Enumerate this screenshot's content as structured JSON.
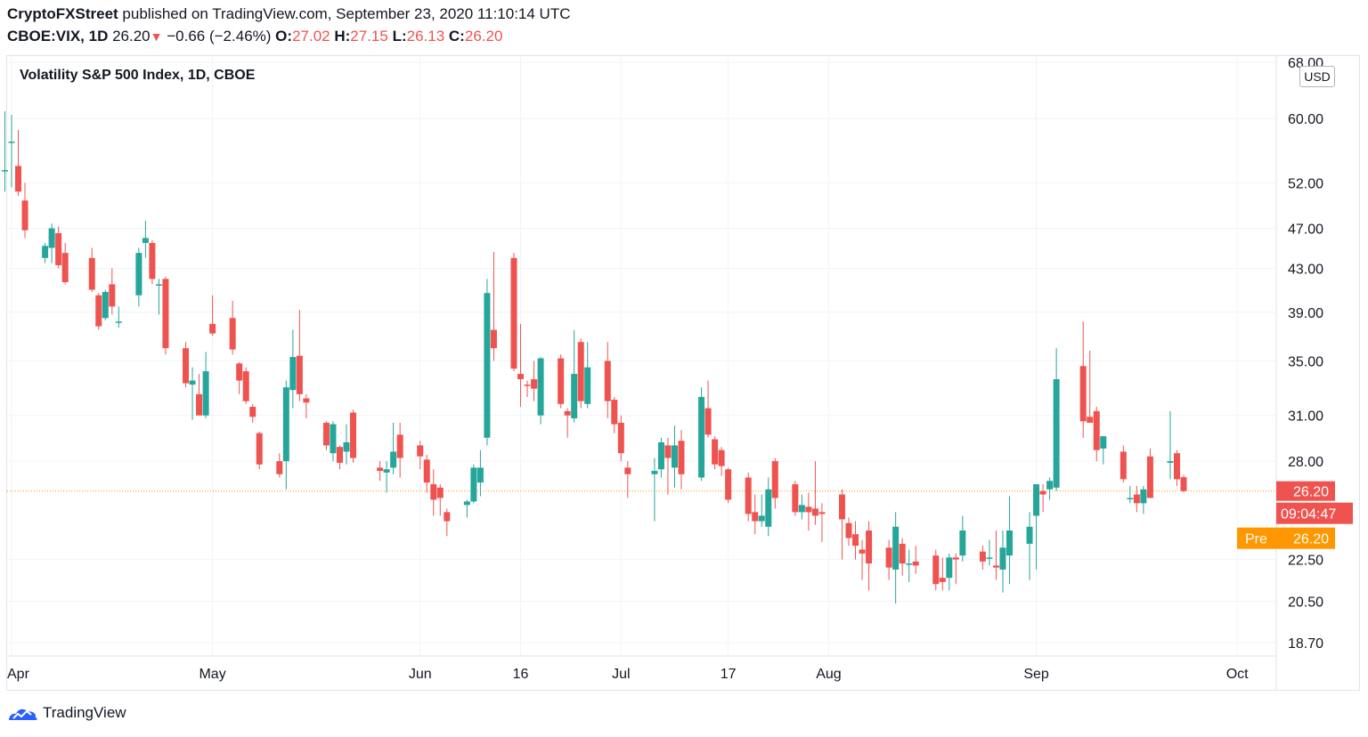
{
  "header": {
    "publisher": "CryptoFXStreet",
    "published_text": "published on TradingView.com, September 23, 2020 11:10:14 UTC",
    "symbol": "CBOE:VIX, 1D",
    "last": "26.20",
    "change": "−0.66 (−2.46%)",
    "o_label": "O:",
    "o_val": "27.02",
    "h_label": "H:",
    "h_val": "27.15",
    "l_label": "L:",
    "l_val": "26.13",
    "c_label": "C:",
    "c_val": "26.20"
  },
  "legend": {
    "title": "Volatility S&P 500 Index, 1D, CBOE"
  },
  "currency_button": "USD",
  "price_tags": {
    "last_price": "26.20",
    "countdown": "09:04:47",
    "pre_label": "Pre",
    "pre_price": "26.20"
  },
  "footer": {
    "brand": "TradingView"
  },
  "colors": {
    "up": "#26a69a",
    "down": "#ef5350",
    "pre": "#ff9800",
    "grid": "#f0f3fa"
  },
  "chart_data": {
    "type": "candlestick",
    "title": "Volatility S&P 500 Index, 1D, CBOE",
    "y_scale": "log",
    "ylim": [
      17.9,
      69.0
    ],
    "y_ticks": [
      "68.00",
      "60.00",
      "52.00",
      "47.00",
      "43.00",
      "39.00",
      "35.00",
      "31.00",
      "28.00",
      "22.50",
      "20.50",
      "18.70"
    ],
    "x_ticks": [
      "Apr",
      "May",
      "Jun",
      "16",
      "Jul",
      "17",
      "Aug",
      "Sep",
      "Oct"
    ],
    "grid": true,
    "last_price_line": 26.2,
    "candles": [
      {
        "d": "03-31",
        "o": 53.5,
        "h": 61.0,
        "l": 51.0,
        "c": 53.5
      },
      {
        "d": "04-01",
        "o": 57.0,
        "h": 60.5,
        "l": 51.5,
        "c": 57.0
      },
      {
        "d": "04-02",
        "o": 54.0,
        "h": 58.5,
        "l": 50.5,
        "c": 51.0
      },
      {
        "d": "04-03",
        "o": 50.0,
        "h": 52.0,
        "l": 46.0,
        "c": 46.8
      },
      {
        "d": "04-06",
        "o": 44.0,
        "h": 45.5,
        "l": 43.5,
        "c": 45.2
      },
      {
        "d": "04-07",
        "o": 45.0,
        "h": 47.5,
        "l": 43.5,
        "c": 47.0
      },
      {
        "d": "04-08",
        "o": 46.5,
        "h": 47.2,
        "l": 43.0,
        "c": 43.3
      },
      {
        "d": "04-09",
        "o": 44.5,
        "h": 45.5,
        "l": 41.5,
        "c": 41.7
      },
      {
        "d": "04-13",
        "o": 44.0,
        "h": 45.0,
        "l": 40.8,
        "c": 41.0
      },
      {
        "d": "04-14",
        "o": 40.5,
        "h": 40.7,
        "l": 37.5,
        "c": 37.8
      },
      {
        "d": "04-15",
        "o": 38.5,
        "h": 41.0,
        "l": 38.3,
        "c": 40.8
      },
      {
        "d": "04-16",
        "o": 41.5,
        "h": 43.0,
        "l": 38.8,
        "c": 39.5
      },
      {
        "d": "04-17",
        "o": 38.2,
        "h": 39.5,
        "l": 37.7,
        "c": 38.2
      },
      {
        "d": "04-20",
        "o": 40.5,
        "h": 45.0,
        "l": 39.5,
        "c": 44.5
      },
      {
        "d": "04-21",
        "o": 45.5,
        "h": 47.8,
        "l": 44.0,
        "c": 46.0
      },
      {
        "d": "04-22",
        "o": 45.5,
        "h": 45.8,
        "l": 41.5,
        "c": 42.0
      },
      {
        "d": "04-23",
        "o": 41.5,
        "h": 42.0,
        "l": 38.8,
        "c": 41.5
      },
      {
        "d": "04-24",
        "o": 42.0,
        "h": 42.2,
        "l": 35.5,
        "c": 36.0
      },
      {
        "d": "04-27",
        "o": 36.0,
        "h": 36.5,
        "l": 33.0,
        "c": 33.3
      },
      {
        "d": "04-28",
        "o": 33.2,
        "h": 34.5,
        "l": 30.7,
        "c": 33.5
      },
      {
        "d": "04-29",
        "o": 32.5,
        "h": 34.0,
        "l": 31.0,
        "c": 31.0
      },
      {
        "d": "04-30",
        "o": 31.0,
        "h": 35.7,
        "l": 30.8,
        "c": 34.2
      },
      {
        "d": "05-01",
        "o": 38.0,
        "h": 40.5,
        "l": 37.0,
        "c": 37.2
      },
      {
        "d": "05-04",
        "o": 38.5,
        "h": 40.0,
        "l": 35.5,
        "c": 35.9
      },
      {
        "d": "05-05",
        "o": 34.8,
        "h": 34.9,
        "l": 32.5,
        "c": 33.5
      },
      {
        "d": "05-06",
        "o": 34.2,
        "h": 34.5,
        "l": 31.8,
        "c": 32.0
      },
      {
        "d": "05-07",
        "o": 31.6,
        "h": 31.8,
        "l": 30.5,
        "c": 30.9
      },
      {
        "d": "05-08",
        "o": 29.8,
        "h": 29.9,
        "l": 27.5,
        "c": 27.8
      },
      {
        "d": "05-11",
        "o": 28.0,
        "h": 28.5,
        "l": 27.0,
        "c": 27.2
      },
      {
        "d": "05-12",
        "o": 28.0,
        "h": 33.5,
        "l": 26.3,
        "c": 33.0
      },
      {
        "d": "05-13",
        "o": 32.8,
        "h": 37.5,
        "l": 31.5,
        "c": 35.3
      },
      {
        "d": "05-14",
        "o": 35.4,
        "h": 39.2,
        "l": 32.0,
        "c": 32.5
      },
      {
        "d": "05-15",
        "o": 32.2,
        "h": 32.5,
        "l": 30.8,
        "c": 31.9
      },
      {
        "d": "05-18",
        "o": 30.5,
        "h": 30.6,
        "l": 28.7,
        "c": 29.0
      },
      {
        "d": "05-19",
        "o": 28.5,
        "h": 30.6,
        "l": 28.0,
        "c": 30.4
      },
      {
        "d": "05-20",
        "o": 28.9,
        "h": 29.0,
        "l": 27.5,
        "c": 27.9
      },
      {
        "d": "05-21",
        "o": 28.6,
        "h": 30.4,
        "l": 27.8,
        "c": 29.2
      },
      {
        "d": "05-22",
        "o": 31.2,
        "h": 31.4,
        "l": 27.9,
        "c": 28.2
      },
      {
        "d": "05-26",
        "o": 27.6,
        "h": 28.0,
        "l": 26.8,
        "c": 27.4
      },
      {
        "d": "05-27",
        "o": 27.3,
        "h": 28.0,
        "l": 26.1,
        "c": 27.5
      },
      {
        "d": "05-28",
        "o": 27.6,
        "h": 30.5,
        "l": 27.2,
        "c": 28.6
      },
      {
        "d": "05-29",
        "o": 29.7,
        "h": 30.5,
        "l": 27.0,
        "c": 28.2
      },
      {
        "d": "06-01",
        "o": 29.0,
        "h": 29.3,
        "l": 27.5,
        "c": 28.3
      },
      {
        "d": "06-02",
        "o": 28.1,
        "h": 28.4,
        "l": 26.1,
        "c": 26.7
      },
      {
        "d": "06-03",
        "o": 26.6,
        "h": 27.5,
        "l": 24.8,
        "c": 25.7
      },
      {
        "d": "06-04",
        "o": 26.4,
        "h": 26.6,
        "l": 24.8,
        "c": 25.8
      },
      {
        "d": "06-05",
        "o": 25.0,
        "h": 25.2,
        "l": 23.7,
        "c": 24.5
      },
      {
        "d": "06-08",
        "o": 25.4,
        "h": 25.7,
        "l": 24.7,
        "c": 25.6
      },
      {
        "d": "06-09",
        "o": 25.6,
        "h": 27.8,
        "l": 25.5,
        "c": 27.6
      },
      {
        "d": "06-10",
        "o": 26.7,
        "h": 28.7,
        "l": 25.9,
        "c": 27.6
      },
      {
        "d": "06-11",
        "o": 29.5,
        "h": 42.0,
        "l": 29.0,
        "c": 40.7
      },
      {
        "d": "06-12",
        "o": 37.5,
        "h": 44.6,
        "l": 35.0,
        "c": 36.0
      },
      {
        "d": "06-15",
        "o": 44.0,
        "h": 44.5,
        "l": 34.2,
        "c": 34.4
      },
      {
        "d": "06-16",
        "o": 34.0,
        "h": 38.0,
        "l": 31.6,
        "c": 33.6
      },
      {
        "d": "06-17",
        "o": 33.2,
        "h": 33.5,
        "l": 32.3,
        "c": 33.1
      },
      {
        "d": "06-18",
        "o": 33.6,
        "h": 35.0,
        "l": 32.0,
        "c": 32.9
      },
      {
        "d": "06-19",
        "o": 31.0,
        "h": 35.3,
        "l": 30.4,
        "c": 35.2
      },
      {
        "d": "06-22",
        "o": 35.2,
        "h": 35.5,
        "l": 31.5,
        "c": 31.8
      },
      {
        "d": "06-23",
        "o": 31.3,
        "h": 31.5,
        "l": 29.5,
        "c": 31.0
      },
      {
        "d": "06-24",
        "o": 30.8,
        "h": 37.5,
        "l": 30.5,
        "c": 34.0
      },
      {
        "d": "06-25",
        "o": 36.5,
        "h": 36.8,
        "l": 31.5,
        "c": 32.0
      },
      {
        "d": "06-26",
        "o": 31.8,
        "h": 36.5,
        "l": 31.5,
        "c": 34.5
      },
      {
        "d": "06-29",
        "o": 35.0,
        "h": 36.5,
        "l": 30.8,
        "c": 32.0
      },
      {
        "d": "06-30",
        "o": 32.1,
        "h": 32.3,
        "l": 29.8,
        "c": 30.4
      },
      {
        "d": "07-01",
        "o": 30.5,
        "h": 31.0,
        "l": 28.0,
        "c": 28.5
      },
      {
        "d": "07-02",
        "o": 27.6,
        "h": 28.0,
        "l": 25.8,
        "c": 27.2
      },
      {
        "d": "07-06",
        "o": 27.2,
        "h": 28.2,
        "l": 24.5,
        "c": 27.4
      },
      {
        "d": "07-07",
        "o": 27.5,
        "h": 29.5,
        "l": 27.0,
        "c": 29.2
      },
      {
        "d": "07-08",
        "o": 29.0,
        "h": 29.5,
        "l": 26.0,
        "c": 28.2
      },
      {
        "d": "07-09",
        "o": 27.6,
        "h": 30.3,
        "l": 26.4,
        "c": 29.0
      },
      {
        "d": "07-10",
        "o": 29.3,
        "h": 30.0,
        "l": 26.3,
        "c": 27.2
      },
      {
        "d": "07-13",
        "o": 27.0,
        "h": 33.0,
        "l": 26.8,
        "c": 32.3
      },
      {
        "d": "07-14",
        "o": 31.5,
        "h": 33.5,
        "l": 29.5,
        "c": 29.7
      },
      {
        "d": "07-15",
        "o": 29.4,
        "h": 29.6,
        "l": 27.5,
        "c": 27.8
      },
      {
        "d": "07-16",
        "o": 28.7,
        "h": 28.9,
        "l": 27.1,
        "c": 27.7
      },
      {
        "d": "07-17",
        "o": 27.5,
        "h": 27.6,
        "l": 25.5,
        "c": 25.7
      },
      {
        "d": "07-20",
        "o": 27.0,
        "h": 27.3,
        "l": 24.5,
        "c": 24.9
      },
      {
        "d": "07-21",
        "o": 25.0,
        "h": 26.0,
        "l": 23.8,
        "c": 24.5
      },
      {
        "d": "07-22",
        "o": 24.5,
        "h": 26.0,
        "l": 24.2,
        "c": 24.8
      },
      {
        "d": "07-23",
        "o": 24.2,
        "h": 27.0,
        "l": 23.7,
        "c": 26.3
      },
      {
        "d": "07-24",
        "o": 28.0,
        "h": 28.2,
        "l": 25.2,
        "c": 25.8
      },
      {
        "d": "07-27",
        "o": 26.6,
        "h": 26.8,
        "l": 24.8,
        "c": 25.0
      },
      {
        "d": "07-28",
        "o": 25.0,
        "h": 26.0,
        "l": 24.6,
        "c": 25.4
      },
      {
        "d": "07-29",
        "o": 25.3,
        "h": 26.1,
        "l": 24.0,
        "c": 25.0
      },
      {
        "d": "07-30",
        "o": 25.2,
        "h": 28.0,
        "l": 24.3,
        "c": 24.8
      },
      {
        "d": "07-31",
        "o": 25.0,
        "h": 25.5,
        "l": 23.4,
        "c": 24.9
      },
      {
        "d": "08-03",
        "o": 26.0,
        "h": 26.3,
        "l": 22.5,
        "c": 24.6
      },
      {
        "d": "08-04",
        "o": 24.4,
        "h": 24.7,
        "l": 23.2,
        "c": 23.6
      },
      {
        "d": "08-05",
        "o": 23.8,
        "h": 24.5,
        "l": 22.5,
        "c": 23.2
      },
      {
        "d": "08-06",
        "o": 23.0,
        "h": 23.5,
        "l": 21.5,
        "c": 22.8
      },
      {
        "d": "08-07",
        "o": 24.0,
        "h": 24.5,
        "l": 21.0,
        "c": 22.3
      },
      {
        "d": "08-10",
        "o": 23.1,
        "h": 23.5,
        "l": 21.5,
        "c": 22.1
      },
      {
        "d": "08-11",
        "o": 22.0,
        "h": 25.0,
        "l": 20.4,
        "c": 24.2
      },
      {
        "d": "08-12",
        "o": 23.3,
        "h": 23.6,
        "l": 21.7,
        "c": 22.3
      },
      {
        "d": "08-13",
        "o": 22.3,
        "h": 23.0,
        "l": 21.4,
        "c": 22.3
      },
      {
        "d": "08-14",
        "o": 22.4,
        "h": 23.2,
        "l": 21.8,
        "c": 22.2
      },
      {
        "d": "08-17",
        "o": 22.7,
        "h": 23.0,
        "l": 21.0,
        "c": 21.3
      },
      {
        "d": "08-18",
        "o": 21.6,
        "h": 22.6,
        "l": 21.0,
        "c": 21.4
      },
      {
        "d": "08-19",
        "o": 21.6,
        "h": 22.8,
        "l": 21.0,
        "c": 22.6
      },
      {
        "d": "08-20",
        "o": 22.6,
        "h": 22.8,
        "l": 21.3,
        "c": 22.5
      },
      {
        "d": "08-21",
        "o": 22.7,
        "h": 24.8,
        "l": 22.4,
        "c": 24.0
      },
      {
        "d": "08-24",
        "o": 22.9,
        "h": 23.2,
        "l": 22.0,
        "c": 22.4
      },
      {
        "d": "08-25",
        "o": 22.6,
        "h": 23.5,
        "l": 22.2,
        "c": 22.6
      },
      {
        "d": "08-26",
        "o": 22.2,
        "h": 24.0,
        "l": 21.5,
        "c": 22.1
      },
      {
        "d": "08-27",
        "o": 22.0,
        "h": 24.0,
        "l": 20.9,
        "c": 23.1
      },
      {
        "d": "08-28",
        "o": 22.7,
        "h": 25.9,
        "l": 21.3,
        "c": 24.0
      },
      {
        "d": "08-31",
        "o": 23.3,
        "h": 25.0,
        "l": 21.5,
        "c": 24.2
      },
      {
        "d": "09-01",
        "o": 24.8,
        "h": 26.5,
        "l": 22.0,
        "c": 26.6
      },
      {
        "d": "09-02",
        "o": 26.2,
        "h": 26.6,
        "l": 25.0,
        "c": 26.0
      },
      {
        "d": "09-03",
        "o": 26.3,
        "h": 27.0,
        "l": 25.7,
        "c": 26.8
      },
      {
        "d": "09-04",
        "o": 26.4,
        "h": 36.0,
        "l": 26.2,
        "c": 33.6
      },
      {
        "d": "09-08",
        "o": 34.6,
        "h": 38.2,
        "l": 29.5,
        "c": 30.6
      },
      {
        "d": "09-09",
        "o": 30.9,
        "h": 35.8,
        "l": 30.5,
        "c": 30.5
      },
      {
        "d": "09-10",
        "o": 31.3,
        "h": 31.6,
        "l": 28.0,
        "c": 28.7
      },
      {
        "d": "09-11",
        "o": 28.8,
        "h": 29.3,
        "l": 27.8,
        "c": 29.6
      },
      {
        "d": "09-14",
        "o": 28.6,
        "h": 29.0,
        "l": 26.7,
        "c": 26.9
      },
      {
        "d": "09-15",
        "o": 25.8,
        "h": 26.5,
        "l": 25.5,
        "c": 25.8
      },
      {
        "d": "09-16",
        "o": 26.0,
        "h": 26.5,
        "l": 25.0,
        "c": 25.5
      },
      {
        "d": "09-17",
        "o": 25.5,
        "h": 26.5,
        "l": 24.9,
        "c": 26.3
      },
      {
        "d": "09-18",
        "o": 28.3,
        "h": 28.8,
        "l": 25.8,
        "c": 25.8
      },
      {
        "d": "09-21",
        "o": 27.9,
        "h": 31.3,
        "l": 26.9,
        "c": 28.0
      },
      {
        "d": "09-22",
        "o": 28.5,
        "h": 28.7,
        "l": 26.5,
        "c": 26.9
      },
      {
        "d": "09-23",
        "o": 27.02,
        "h": 27.15,
        "l": 26.13,
        "c": 26.2
      }
    ]
  }
}
